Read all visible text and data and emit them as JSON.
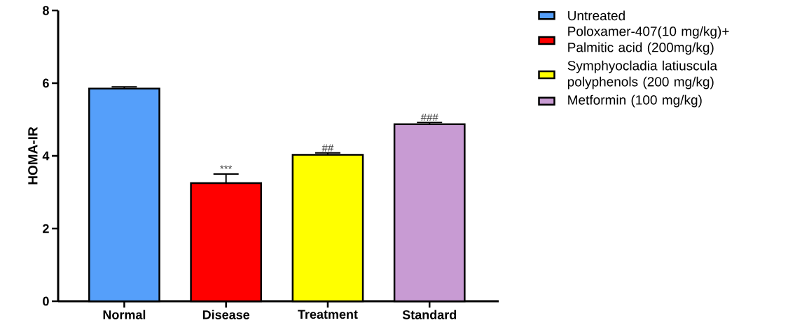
{
  "chart_data": {
    "type": "bar",
    "ylabel": "HOMA-IR",
    "categories": [
      "Normal",
      "Disease",
      "Treatment",
      "Standard"
    ],
    "series": [
      {
        "name": "Untreated",
        "color": "#559ffa",
        "values": [
          5.85,
          null,
          null,
          null
        ],
        "errors": [
          0.05,
          null,
          null,
          null
        ]
      },
      {
        "name": "Poloxamer-407(10 mg/kg)+ Palmitic acid (200mg/kg)",
        "color": "#ff0000",
        "values": [
          null,
          3.25,
          null,
          null
        ],
        "errors": [
          null,
          0.25,
          null,
          null
        ]
      },
      {
        "name": "Symphyocladia latiuscula polyphenols (200 mg/kg)",
        "color": "#ffff00",
        "values": [
          null,
          null,
          4.03,
          null
        ],
        "errors": [
          null,
          null,
          0.05,
          null
        ]
      },
      {
        "name": "Metformin (100 mg/kg)",
        "color": "#c89bd3",
        "values": [
          null,
          null,
          null,
          4.87
        ],
        "errors": [
          null,
          null,
          null,
          0.05
        ]
      }
    ],
    "ylim": [
      0,
      8
    ],
    "yticks": [
      0,
      2,
      4,
      6,
      8
    ],
    "legend": "right",
    "annotations": [
      {
        "text": "***",
        "x": "Disease",
        "y": 3.5
      },
      {
        "text": "##",
        "x": "Treatment",
        "y": 4.08
      },
      {
        "text": "###",
        "x": "Standard",
        "y": 4.92
      }
    ]
  }
}
